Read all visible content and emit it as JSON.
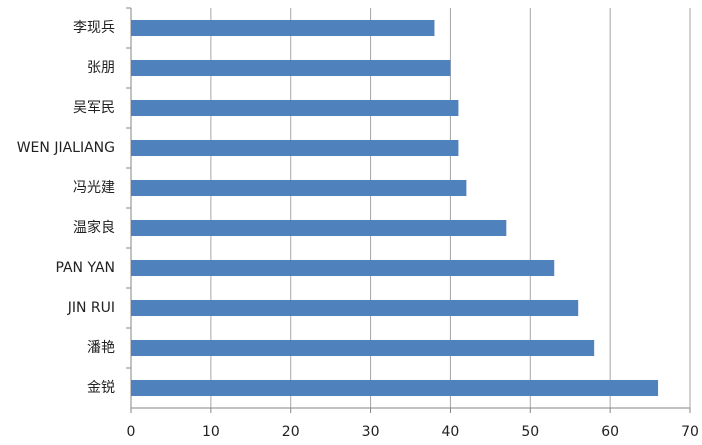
{
  "chart_data": {
    "type": "barh",
    "categories": [
      "李现兵",
      "张朋",
      "吴军民",
      "WEN JIALIANG",
      "冯光建",
      "温家良",
      "PAN YAN",
      "JIN RUI",
      "潘艳",
      "金锐"
    ],
    "values": [
      38,
      40,
      41,
      41,
      42,
      47,
      53,
      56,
      58,
      66
    ],
    "color": "#4f81bd",
    "xlim": [
      0,
      70
    ],
    "xticks": [
      0,
      10,
      20,
      30,
      40,
      50,
      60,
      70
    ],
    "grid": true
  }
}
